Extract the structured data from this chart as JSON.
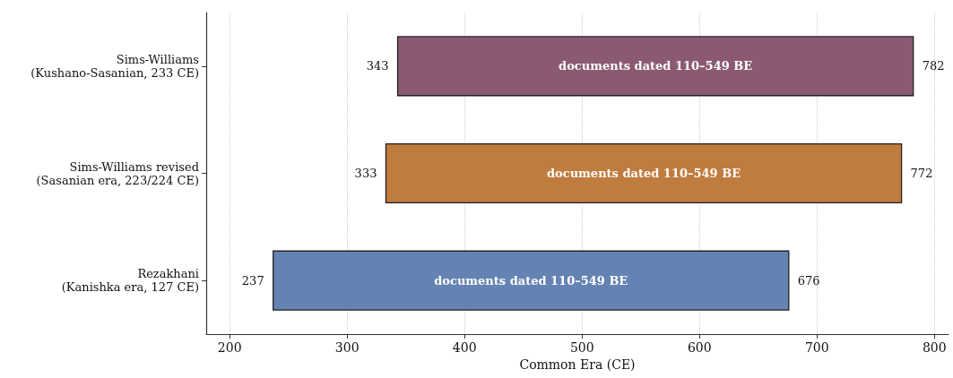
{
  "chart_data": {
    "type": "bar",
    "orientation": "horizontal",
    "xlabel": "Common Era (CE)",
    "categories": [
      "Sims-Williams\n(Kushano-Sasanian, 233 CE)",
      "Sims-Williams revised\n(Sasanian era, 223/224 CE)",
      "Rezakhani\n(Kanishka era, 127 CE)"
    ],
    "base": [
      343,
      333,
      237
    ],
    "values": [
      439,
      439,
      439
    ],
    "colors": [
      "#8b5a72",
      "#c07b3e",
      "#6483b2"
    ],
    "value_labels": [
      "782",
      "772",
      "676"
    ],
    "xlim": [
      180,
      812
    ],
    "xticks": [
      200,
      300,
      400,
      500,
      600,
      700,
      800
    ],
    "grid": "x",
    "annotations": [
      {
        "text": "343",
        "x": 343,
        "y": "Sims-Williams\n(Kushano-Sasanian, 233 CE)"
      },
      {
        "text": "333",
        "x": 333,
        "y": "Sims-Williams revised\n(Sasanian era, 223/224 CE)"
      },
      {
        "text": "237",
        "x": 237,
        "y": "Rezakhani\n(Kanishka era, 127 CE)"
      },
      "documents dated 110–549 BE",
      "documents dated 110–549 BE",
      "documents dated 110–549 BE"
    ]
  }
}
